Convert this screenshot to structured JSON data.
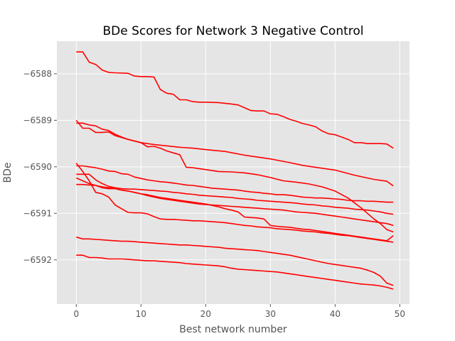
{
  "chart_data": {
    "type": "line",
    "title": "BDe Scores for Network 3 Negative Control",
    "xlabel": "Best network number",
    "ylabel": "BDe",
    "xlim": [
      -3,
      51.5
    ],
    "ylim": [
      -6592.95,
      -6587.3
    ],
    "xticks": [
      0,
      10,
      20,
      30,
      40,
      50
    ],
    "yticks": [
      -6588,
      -6589,
      -6590,
      -6591,
      -6592
    ],
    "grid": true,
    "background_color": "#e5e5e5",
    "line_color": "#ff0000",
    "series": [
      {
        "x": [
          0,
          1,
          2,
          3,
          4,
          5,
          6,
          8,
          9,
          10,
          11,
          12,
          13,
          14,
          15,
          16,
          17,
          18,
          19,
          20,
          22,
          24,
          25,
          26,
          27,
          28,
          29,
          30,
          31,
          32,
          33,
          34,
          35,
          36,
          37,
          38,
          39,
          40,
          41,
          42,
          43,
          44,
          45,
          46,
          47,
          48,
          49
        ],
        "values": [
          -6587.53,
          -6587.53,
          -6587.75,
          -6587.8,
          -6587.92,
          -6587.97,
          -6587.98,
          -6587.99,
          -6588.05,
          -6588.06,
          -6588.06,
          -6588.07,
          -6588.34,
          -6588.42,
          -6588.44,
          -6588.56,
          -6588.56,
          -6588.6,
          -6588.61,
          -6588.61,
          -6588.62,
          -6588.65,
          -6588.67,
          -6588.73,
          -6588.79,
          -6588.8,
          -6588.8,
          -6588.86,
          -6588.87,
          -6588.92,
          -6588.98,
          -6589.02,
          -6589.07,
          -6589.1,
          -6589.14,
          -6589.23,
          -6589.29,
          -6589.31,
          -6589.36,
          -6589.41,
          -6589.48,
          -6589.48,
          -6589.5,
          -6589.5,
          -6589.5,
          -6589.51,
          -6589.6
        ]
      },
      {
        "x": [
          0,
          1,
          2,
          3,
          4,
          5,
          6,
          8,
          10,
          12,
          14,
          16,
          18,
          20,
          23,
          26,
          28,
          30,
          33,
          35,
          38,
          40,
          43,
          46,
          48,
          49
        ],
        "values": [
          -6589.0,
          -6589.17,
          -6589.17,
          -6589.26,
          -6589.26,
          -6589.25,
          -6589.33,
          -6589.41,
          -6589.48,
          -6589.52,
          -6589.55,
          -6589.58,
          -6589.6,
          -6589.63,
          -6589.67,
          -6589.75,
          -6589.79,
          -6589.83,
          -6589.91,
          -6589.97,
          -6590.03,
          -6590.07,
          -6590.18,
          -6590.27,
          -6590.31,
          -6590.41
        ]
      },
      {
        "x": [
          0,
          1,
          2,
          3,
          4,
          5,
          6,
          7,
          8,
          10,
          11,
          12,
          13,
          14,
          15,
          16,
          17,
          18,
          19,
          20,
          21,
          22,
          24,
          26,
          28,
          30,
          32,
          34,
          36,
          38,
          40,
          42,
          44,
          45,
          46,
          47,
          48,
          49
        ],
        "values": [
          -6589.06,
          -6589.06,
          -6589.1,
          -6589.12,
          -6589.19,
          -6589.22,
          -6589.3,
          -6589.36,
          -6589.41,
          -6589.48,
          -6589.57,
          -6589.56,
          -6589.6,
          -6589.66,
          -6589.7,
          -6589.74,
          -6590.01,
          -6590.02,
          -6590.04,
          -6590.06,
          -6590.08,
          -6590.1,
          -6590.11,
          -6590.13,
          -6590.17,
          -6590.23,
          -6590.3,
          -6590.33,
          -6590.37,
          -6590.43,
          -6590.52,
          -6590.67,
          -6590.88,
          -6591.0,
          -6591.12,
          -6591.22,
          -6591.35,
          -6591.4
        ]
      },
      {
        "x": [
          0,
          1,
          2,
          3,
          4,
          5,
          6,
          7,
          8,
          9,
          10,
          11,
          12,
          13,
          14,
          15,
          16,
          17,
          18,
          19,
          20,
          21,
          22,
          23,
          24,
          25,
          26,
          27,
          28,
          29,
          30,
          31,
          32,
          33,
          34,
          35,
          36,
          37,
          38,
          39,
          40,
          41,
          42,
          43,
          44,
          45,
          46,
          47,
          48,
          49
        ],
        "values": [
          -6589.98,
          -6589.98,
          -6590.0,
          -6590.02,
          -6590.05,
          -6590.09,
          -6590.1,
          -6590.15,
          -6590.16,
          -6590.22,
          -6590.25,
          -6590.28,
          -6590.3,
          -6590.32,
          -6590.33,
          -6590.35,
          -6590.37,
          -6590.39,
          -6590.4,
          -6590.42,
          -6590.44,
          -6590.46,
          -6590.47,
          -6590.48,
          -6590.49,
          -6590.5,
          -6590.52,
          -6590.54,
          -6590.55,
          -6590.57,
          -6590.58,
          -6590.6,
          -6590.6,
          -6590.61,
          -6590.63,
          -6590.65,
          -6590.66,
          -6590.67,
          -6590.67,
          -6590.68,
          -6590.69,
          -6590.7,
          -6590.72,
          -6590.73,
          -6590.73,
          -6590.74,
          -6590.74,
          -6590.75,
          -6590.76,
          -6590.76
        ]
      },
      {
        "x": [
          0,
          1,
          2,
          3,
          4,
          5,
          6,
          7,
          8,
          9,
          10,
          11,
          12,
          13,
          14,
          15,
          16,
          17,
          18,
          19,
          20,
          21,
          22,
          23,
          24,
          25,
          26,
          27,
          28,
          29,
          30,
          31,
          32,
          33,
          34,
          35,
          36,
          37,
          38,
          39,
          40,
          41,
          42,
          43,
          44,
          45,
          46,
          47,
          48,
          49
        ],
        "values": [
          -6590.16,
          -6590.16,
          -6590.16,
          -6590.28,
          -6590.36,
          -6590.42,
          -6590.45,
          -6590.47,
          -6590.48,
          -6590.48,
          -6590.49,
          -6590.5,
          -6590.51,
          -6590.52,
          -6590.53,
          -6590.55,
          -6590.56,
          -6590.58,
          -6590.59,
          -6590.61,
          -6590.62,
          -6590.63,
          -6590.64,
          -6590.65,
          -6590.66,
          -6590.68,
          -6590.69,
          -6590.7,
          -6590.72,
          -6590.73,
          -6590.74,
          -6590.75,
          -6590.76,
          -6590.77,
          -6590.78,
          -6590.8,
          -6590.81,
          -6590.82,
          -6590.84,
          -6590.85,
          -6590.87,
          -6590.88,
          -6590.89,
          -6590.91,
          -6590.92,
          -6590.93,
          -6590.95,
          -6590.97,
          -6591.0,
          -6591.02
        ]
      },
      {
        "x": [
          0,
          1,
          2,
          3,
          4,
          5,
          6,
          7,
          8,
          9,
          10,
          11,
          12,
          13,
          14,
          15,
          16,
          17,
          18,
          19,
          20,
          21,
          22,
          23,
          24,
          25,
          26,
          27,
          28,
          29,
          30,
          31,
          32,
          33,
          34,
          35,
          36,
          37,
          38,
          39,
          40,
          41,
          42,
          43,
          44,
          45,
          46,
          47,
          48,
          49
        ],
        "values": [
          -6590.24,
          -6590.3,
          -6590.36,
          -6590.4,
          -6590.45,
          -6590.47,
          -6590.47,
          -6590.5,
          -6590.52,
          -6590.55,
          -6590.58,
          -6590.62,
          -6590.65,
          -6590.68,
          -6590.7,
          -6590.72,
          -6590.74,
          -6590.76,
          -6590.78,
          -6590.8,
          -6590.81,
          -6590.82,
          -6590.83,
          -6590.84,
          -6590.85,
          -6590.86,
          -6590.87,
          -6590.88,
          -6590.89,
          -6590.9,
          -6590.91,
          -6590.92,
          -6590.93,
          -6590.95,
          -6590.97,
          -6590.98,
          -6590.99,
          -6591.0,
          -6591.02,
          -6591.04,
          -6591.06,
          -6591.08,
          -6591.1,
          -6591.12,
          -6591.14,
          -6591.16,
          -6591.18,
          -6591.2,
          -6591.22,
          -6591.26
        ]
      },
      {
        "x": [
          0,
          1,
          2,
          3,
          4,
          5,
          6,
          7,
          8,
          9,
          10,
          11,
          12,
          13,
          14,
          15,
          16,
          17,
          18,
          19,
          20,
          21,
          22,
          23,
          24,
          25,
          26,
          27,
          28,
          29,
          30,
          31,
          32,
          33,
          34,
          35,
          36,
          37,
          38,
          39,
          40,
          41,
          42,
          43,
          44,
          45,
          46,
          47,
          48,
          49
        ],
        "values": [
          -6589.92,
          -6590.1,
          -6590.3,
          -6590.55,
          -6590.58,
          -6590.65,
          -6590.82,
          -6590.9,
          -6590.98,
          -6590.99,
          -6590.99,
          -6591.01,
          -6591.07,
          -6591.12,
          -6591.13,
          -6591.13,
          -6591.14,
          -6591.15,
          -6591.16,
          -6591.16,
          -6591.17,
          -6591.18,
          -6591.19,
          -6591.2,
          -6591.22,
          -6591.24,
          -6591.26,
          -6591.27,
          -6591.29,
          -6591.3,
          -6591.31,
          -6591.33,
          -6591.34,
          -6591.35,
          -6591.36,
          -6591.38,
          -6591.39,
          -6591.4,
          -6591.42,
          -6591.43,
          -6591.45,
          -6591.47,
          -6591.48,
          -6591.5,
          -6591.52,
          -6591.54,
          -6591.56,
          -6591.58,
          -6591.6,
          -6591.62
        ]
      },
      {
        "x": [
          0,
          1,
          2,
          3,
          4,
          5,
          6,
          7,
          8,
          9,
          10,
          11,
          12,
          13,
          14,
          15,
          16,
          17,
          18,
          19,
          20,
          21,
          22,
          23,
          24,
          25,
          26,
          27,
          28,
          29,
          30,
          31,
          32,
          33,
          34,
          35,
          36,
          37,
          38,
          39,
          40,
          41,
          42,
          43,
          44,
          45,
          46,
          47,
          48,
          49
        ],
        "values": [
          -6590.38,
          -6590.38,
          -6590.39,
          -6590.4,
          -6590.43,
          -6590.45,
          -6590.47,
          -6590.5,
          -6590.52,
          -6590.55,
          -6590.58,
          -6590.6,
          -6590.63,
          -6590.66,
          -6590.68,
          -6590.7,
          -6590.72,
          -6590.74,
          -6590.76,
          -6590.78,
          -6590.8,
          -6590.83,
          -6590.86,
          -6590.9,
          -6590.93,
          -6590.97,
          -6591.08,
          -6591.09,
          -6591.1,
          -6591.12,
          -6591.26,
          -6591.28,
          -6591.29,
          -6591.3,
          -6591.32,
          -6591.34,
          -6591.35,
          -6591.37,
          -6591.39,
          -6591.41,
          -6591.43,
          -6591.45,
          -6591.47,
          -6591.49,
          -6591.51,
          -6591.53,
          -6591.55,
          -6591.57,
          -6591.59,
          -6591.48
        ]
      },
      {
        "x": [
          0,
          1,
          2,
          3,
          4,
          5,
          6,
          7,
          8,
          9,
          10,
          11,
          12,
          13,
          14,
          15,
          16,
          17,
          18,
          19,
          20,
          21,
          22,
          23,
          24,
          25,
          26,
          27,
          28,
          29,
          30,
          31,
          32,
          33,
          34,
          35,
          36,
          37,
          38,
          39,
          40,
          41,
          42,
          43,
          44,
          45,
          46,
          47,
          48,
          49
        ],
        "values": [
          -6591.51,
          -6591.55,
          -6591.55,
          -6591.56,
          -6591.57,
          -6591.58,
          -6591.59,
          -6591.6,
          -6591.6,
          -6591.61,
          -6591.62,
          -6591.63,
          -6591.64,
          -6591.65,
          -6591.66,
          -6591.67,
          -6591.68,
          -6591.68,
          -6591.69,
          -6591.7,
          -6591.71,
          -6591.72,
          -6591.73,
          -6591.75,
          -6591.76,
          -6591.77,
          -6591.78,
          -6591.79,
          -6591.8,
          -6591.82,
          -6591.84,
          -6591.86,
          -6591.88,
          -6591.9,
          -6591.93,
          -6591.96,
          -6591.99,
          -6592.02,
          -6592.05,
          -6592.08,
          -6592.1,
          -6592.12,
          -6592.14,
          -6592.16,
          -6592.18,
          -6592.22,
          -6592.27,
          -6592.35,
          -6592.5,
          -6592.55
        ]
      },
      {
        "x": [
          0,
          1,
          2,
          3,
          4,
          5,
          6,
          7,
          8,
          9,
          10,
          11,
          12,
          13,
          14,
          15,
          16,
          17,
          18,
          19,
          20,
          21,
          22,
          23,
          24,
          25,
          26,
          27,
          28,
          29,
          30,
          31,
          32,
          33,
          34,
          35,
          36,
          37,
          38,
          39,
          40,
          41,
          42,
          43,
          44,
          45,
          46,
          47,
          48,
          49
        ],
        "values": [
          -6591.9,
          -6591.9,
          -6591.95,
          -6591.95,
          -6591.96,
          -6591.98,
          -6591.98,
          -6591.98,
          -6591.99,
          -6592.0,
          -6592.01,
          -6592.02,
          -6592.02,
          -6592.03,
          -6592.04,
          -6592.05,
          -6592.06,
          -6592.08,
          -6592.09,
          -6592.1,
          -6592.11,
          -6592.12,
          -6592.13,
          -6592.15,
          -6592.18,
          -6592.2,
          -6592.21,
          -6592.22,
          -6592.23,
          -6592.24,
          -6592.25,
          -6592.26,
          -6592.28,
          -6592.3,
          -6592.32,
          -6592.34,
          -6592.36,
          -6592.38,
          -6592.4,
          -6592.42,
          -6592.44,
          -6592.46,
          -6592.48,
          -6592.5,
          -6592.52,
          -6592.53,
          -6592.54,
          -6592.56,
          -6592.59,
          -6592.63
        ]
      }
    ]
  }
}
